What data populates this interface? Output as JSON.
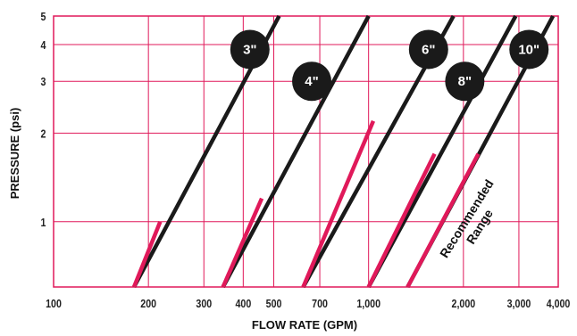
{
  "chart_data": {
    "type": "line",
    "xlabel": "FLOW RATE (GPM)",
    "ylabel": "PRESSURE (psi)",
    "x_scale": "log",
    "y_scale": "log",
    "xlim": [
      100,
      4000
    ],
    "ylim": [
      0.6,
      5
    ],
    "x_ticks": [
      {
        "value": 100,
        "label": "100"
      },
      {
        "value": 200,
        "label": "200"
      },
      {
        "value": 300,
        "label": "300"
      },
      {
        "value": 400,
        "label": "400"
      },
      {
        "value": 500,
        "label": "500"
      },
      {
        "value": 700,
        "label": "700"
      },
      {
        "value": 1000,
        "label": "1,000"
      },
      {
        "value": 2000,
        "label": "2,000"
      },
      {
        "value": 3000,
        "label": "3,000"
      },
      {
        "value": 4000,
        "label": "4,000"
      }
    ],
    "y_ticks": [
      {
        "value": 1,
        "label": "1"
      },
      {
        "value": 2,
        "label": "2"
      },
      {
        "value": 3,
        "label": "3"
      },
      {
        "value": 4,
        "label": "4"
      },
      {
        "value": 5,
        "label": "5"
      }
    ],
    "grid": true,
    "colors": {
      "grid": "#e0195a",
      "curve": "#1a1a1a",
      "recommended": "#e0195a",
      "badge": "#1a1a1a",
      "badge_text": "#ffffff"
    },
    "series": [
      {
        "name": "3\"",
        "x": [
          180,
          520
        ],
        "y": [
          0.6,
          5
        ],
        "recommended_x": [
          180,
          218
        ],
        "recommended_y": [
          0.6,
          1.0
        ],
        "badge_at": [
          420,
          3.85
        ]
      },
      {
        "name": "4\"",
        "x": [
          345,
          1000
        ],
        "y": [
          0.6,
          5
        ],
        "recommended_x": [
          345,
          458
        ],
        "recommended_y": [
          0.6,
          1.2
        ],
        "badge_at": [
          660,
          3.0
        ]
      },
      {
        "name": "6\"",
        "x": [
          620,
          1860
        ],
        "y": [
          0.6,
          5
        ],
        "recommended_x": [
          620,
          1035
        ],
        "recommended_y": [
          0.6,
          2.2
        ],
        "badge_at": [
          1550,
          3.85
        ]
      },
      {
        "name": "8\"",
        "x": [
          1000,
          2930
        ],
        "y": [
          0.6,
          5
        ],
        "recommended_x": [
          1000,
          1620
        ],
        "recommended_y": [
          0.6,
          1.7
        ],
        "badge_at": [
          2020,
          3.0
        ]
      },
      {
        "name": "10\"",
        "x": [
          1330,
          3850
        ],
        "y": [
          0.6,
          5
        ],
        "recommended_x": [
          1330,
          2230
        ],
        "recommended_y": [
          0.6,
          1.7
        ],
        "badge_at": [
          3230,
          3.85
        ]
      }
    ],
    "annotations": [
      "Recommended",
      "Range"
    ]
  }
}
